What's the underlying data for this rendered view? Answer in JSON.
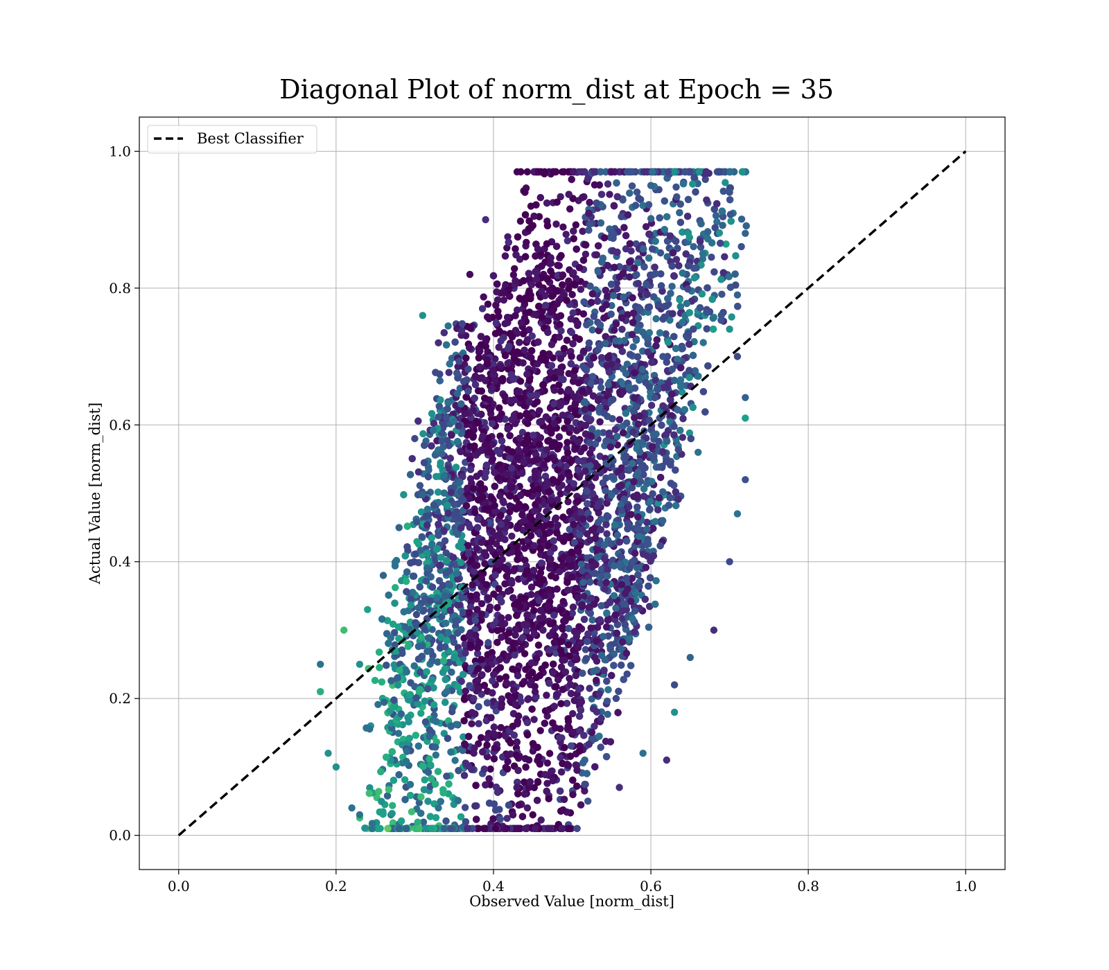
{
  "chart_data": {
    "type": "scatter",
    "title": "Diagonal Plot of norm_dist at Epoch = 35",
    "xlabel": "Observed Value [norm_dist]",
    "ylabel": "Actual Value [norm_dist]",
    "xlim": [
      -0.05,
      1.05
    ],
    "ylim": [
      -0.05,
      1.05
    ],
    "xticks": [
      0.0,
      0.2,
      0.4,
      0.6,
      0.8,
      1.0
    ],
    "yticks": [
      0.0,
      0.2,
      0.4,
      0.6,
      0.8,
      1.0
    ],
    "xtick_labels": [
      "0.0",
      "0.2",
      "0.4",
      "0.6",
      "0.8",
      "1.0"
    ],
    "ytick_labels": [
      "0.0",
      "0.2",
      "0.4",
      "0.6",
      "0.8",
      "1.0"
    ],
    "grid": true,
    "legend": {
      "placement": "top-left",
      "entries": [
        "Best Classifier"
      ]
    },
    "reference_line": {
      "name": "Best Classifier",
      "style": "dashed",
      "color": "#000000",
      "x": [
        0.0,
        1.0
      ],
      "y": [
        0.0,
        1.0
      ]
    },
    "colormap": "viridis",
    "point_color": "#3b528b",
    "scatter_region": {
      "x_range": [
        0.17,
        0.72
      ],
      "y_range": [
        0.01,
        0.97
      ],
      "lower_edge_slope": 2.1,
      "upper_edge_slope": 2.1
    },
    "sample_points": [
      [
        0.43,
        0.97
      ],
      [
        0.52,
        0.96
      ],
      [
        0.57,
        0.97
      ],
      [
        0.44,
        0.94
      ],
      [
        0.6,
        0.95
      ],
      [
        0.39,
        0.9
      ],
      [
        0.37,
        0.82
      ],
      [
        0.31,
        0.76
      ],
      [
        0.33,
        0.72
      ],
      [
        0.3,
        0.58
      ],
      [
        0.28,
        0.45
      ],
      [
        0.26,
        0.38
      ],
      [
        0.24,
        0.33
      ],
      [
        0.21,
        0.3
      ],
      [
        0.18,
        0.25
      ],
      [
        0.18,
        0.21
      ],
      [
        0.19,
        0.12
      ],
      [
        0.2,
        0.1
      ],
      [
        0.22,
        0.04
      ],
      [
        0.23,
        0.03
      ],
      [
        0.33,
        0.04
      ],
      [
        0.43,
        0.01
      ],
      [
        0.45,
        0.03
      ],
      [
        0.52,
        0.05
      ],
      [
        0.56,
        0.07
      ],
      [
        0.59,
        0.12
      ],
      [
        0.62,
        0.11
      ],
      [
        0.63,
        0.18
      ],
      [
        0.63,
        0.22
      ],
      [
        0.65,
        0.26
      ],
      [
        0.68,
        0.3
      ],
      [
        0.7,
        0.4
      ],
      [
        0.71,
        0.47
      ],
      [
        0.72,
        0.52
      ],
      [
        0.72,
        0.61
      ],
      [
        0.72,
        0.64
      ],
      [
        0.71,
        0.7
      ],
      [
        0.71,
        0.79
      ],
      [
        0.72,
        0.88
      ],
      [
        0.7,
        0.94
      ],
      [
        0.56,
        0.51
      ],
      [
        0.7,
        0.74
      ],
      [
        0.18,
        0.21
      ],
      [
        0.23,
        0.25
      ],
      [
        0.36,
        0.42
      ],
      [
        0.49,
        0.55
      ],
      [
        0.66,
        0.56
      ],
      [
        0.64,
        0.75
      ]
    ]
  }
}
